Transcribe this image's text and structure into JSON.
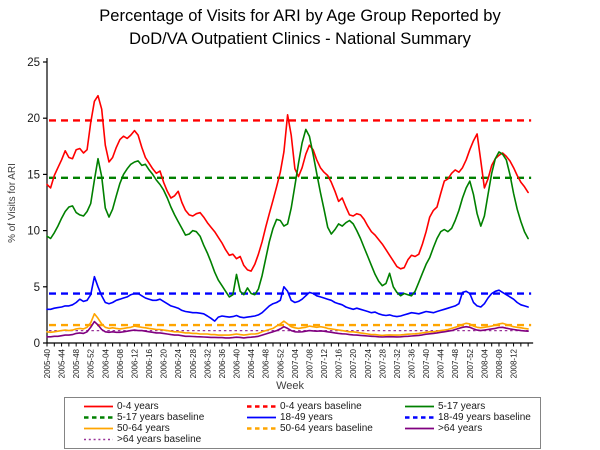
{
  "title": {
    "line1": "Percentage of Visits for ARI by Age Group Reported by",
    "line2": "DoD/VA Outpatient Clinics - National Summary"
  },
  "chart_data": {
    "type": "line",
    "title": "Percentage of Visits for ARI by Age Group Reported by DoD/VA Outpatient Clinics - National Summary",
    "xlabel": "Week",
    "ylabel": "% of Visits for ARI",
    "ylim": [
      0,
      25
    ],
    "yticks": [
      0,
      5,
      10,
      15,
      20,
      25
    ],
    "grid": false,
    "legend_position": "bottom",
    "n_points": 133,
    "weeks_per_point": 1,
    "x_tick_every_points": 4,
    "x_tick_labels": [
      "2005-40",
      "2005-44",
      "2005-48",
      "2005-52",
      "2006-04",
      "2006-08",
      "2006-12",
      "2006-16",
      "2006-20",
      "2006-24",
      "2006-28",
      "2006-32",
      "2006-36",
      "2006-40",
      "2006-44",
      "2006-48",
      "2006-52",
      "2007-04",
      "2007-08",
      "2007-12",
      "2007-16",
      "2007-20",
      "2007-24",
      "2007-28",
      "2007-32",
      "2007-36",
      "2007-40",
      "2007-44",
      "2007-48",
      "2007-52",
      "2008-04",
      "2008-08",
      "2008-12"
    ],
    "series": [
      {
        "name": "0-4 years",
        "color": "#FF0000",
        "style": "solid",
        "values": [
          14.1,
          13.8,
          14.9,
          15.6,
          16.3,
          17.1,
          16.5,
          16.4,
          17.2,
          17.3,
          16.9,
          17.2,
          19.6,
          21.5,
          22.0,
          20.8,
          17.6,
          16.1,
          16.5,
          17.4,
          18.1,
          18.4,
          18.2,
          18.5,
          18.9,
          18.5,
          17.4,
          16.5,
          16.0,
          15.5,
          15.1,
          15.3,
          14.3,
          13.5,
          12.9,
          13.1,
          13.5,
          12.5,
          11.8,
          11.4,
          11.3,
          11.5,
          11.6,
          11.2,
          10.7,
          10.3,
          9.9,
          9.4,
          8.9,
          8.3,
          7.8,
          7.9,
          7.5,
          7.7,
          6.9,
          6.5,
          6.4,
          7.0,
          7.9,
          9.0,
          10.3,
          11.5,
          12.7,
          13.9,
          15.2,
          17.0,
          20.3,
          18.5,
          15.5,
          14.8,
          15.6,
          16.8,
          17.6,
          17.2,
          16.3,
          15.6,
          15.2,
          14.9,
          14.3,
          13.5,
          12.6,
          12.9,
          12.1,
          11.4,
          11.3,
          11.5,
          11.4,
          11.0,
          10.4,
          9.9,
          9.6,
          9.2,
          8.8,
          8.3,
          7.8,
          7.3,
          6.8,
          6.6,
          6.7,
          7.4,
          7.8,
          7.7,
          7.9,
          8.8,
          9.9,
          11.2,
          11.8,
          12.1,
          13.3,
          14.4,
          14.6,
          15.1,
          15.4,
          15.2,
          15.6,
          16.3,
          17.2,
          18.0,
          18.6,
          16.2,
          13.8,
          14.6,
          15.8,
          16.4,
          16.7,
          16.9,
          16.6,
          16.2,
          15.6,
          14.9,
          14.3,
          13.9,
          13.4
        ]
      },
      {
        "name": "5-17 years",
        "color": "#008000",
        "style": "solid",
        "values": [
          9.5,
          9.3,
          9.8,
          10.4,
          11.1,
          11.7,
          12.1,
          12.2,
          11.6,
          11.4,
          11.3,
          11.7,
          12.4,
          14.5,
          16.4,
          14.8,
          12.0,
          11.2,
          11.9,
          13.1,
          14.2,
          15.0,
          15.5,
          15.9,
          16.1,
          16.2,
          15.8,
          15.9,
          15.4,
          15.0,
          14.5,
          14.1,
          13.6,
          12.9,
          12.1,
          11.4,
          10.8,
          10.2,
          9.6,
          9.7,
          10.0,
          9.9,
          9.5,
          8.7,
          8.0,
          7.2,
          6.3,
          5.6,
          5.1,
          4.6,
          4.1,
          4.3,
          6.1,
          4.6,
          4.3,
          4.9,
          4.4,
          4.3,
          4.8,
          6.0,
          7.5,
          9.0,
          10.2,
          11.0,
          10.9,
          10.4,
          10.6,
          12.0,
          14.0,
          16.0,
          17.8,
          19.0,
          18.4,
          16.8,
          15.1,
          13.4,
          11.9,
          10.3,
          9.7,
          10.1,
          10.6,
          10.4,
          10.7,
          10.9,
          10.6,
          10.0,
          9.3,
          8.5,
          7.7,
          6.9,
          6.1,
          5.5,
          5.1,
          5.3,
          6.2,
          5.0,
          4.5,
          4.2,
          4.4,
          4.3,
          4.2,
          4.6,
          5.4,
          6.2,
          7.0,
          7.6,
          8.5,
          9.3,
          9.9,
          10.1,
          9.9,
          10.2,
          10.9,
          11.8,
          12.9,
          13.8,
          14.4,
          13.2,
          11.5,
          10.4,
          11.3,
          13.2,
          15.1,
          16.4,
          17.0,
          16.8,
          16.3,
          15.0,
          13.3,
          11.9,
          10.8,
          9.9,
          9.3
        ]
      },
      {
        "name": "18-49 years",
        "color": "#0000FF",
        "style": "solid",
        "values": [
          3.0,
          3.0,
          3.1,
          3.15,
          3.2,
          3.3,
          3.3,
          3.4,
          3.6,
          3.9,
          3.7,
          3.8,
          4.3,
          5.9,
          5.0,
          4.2,
          3.6,
          3.5,
          3.6,
          3.8,
          3.9,
          4.0,
          4.1,
          4.3,
          4.4,
          4.4,
          4.2,
          4.0,
          3.9,
          3.8,
          3.8,
          3.9,
          3.7,
          3.5,
          3.3,
          3.2,
          3.1,
          2.9,
          2.8,
          2.75,
          2.7,
          2.7,
          2.65,
          2.6,
          2.4,
          2.2,
          1.95,
          2.3,
          2.4,
          2.35,
          2.3,
          2.35,
          2.45,
          2.3,
          2.25,
          2.3,
          2.35,
          2.4,
          2.5,
          2.7,
          3.0,
          3.3,
          3.5,
          3.6,
          3.8,
          5.0,
          4.6,
          3.8,
          3.6,
          3.7,
          3.9,
          4.2,
          4.5,
          4.4,
          4.2,
          4.1,
          4.0,
          3.9,
          3.8,
          3.6,
          3.5,
          3.4,
          3.2,
          3.1,
          3.0,
          3.1,
          3.0,
          2.9,
          2.8,
          2.7,
          2.75,
          2.6,
          2.5,
          2.45,
          2.5,
          2.4,
          2.35,
          2.4,
          2.5,
          2.6,
          2.7,
          2.65,
          2.6,
          2.7,
          2.8,
          2.75,
          2.7,
          2.8,
          2.9,
          3.0,
          3.1,
          3.2,
          3.3,
          3.5,
          4.5,
          4.6,
          4.4,
          3.6,
          3.3,
          3.2,
          3.5,
          4.0,
          4.4,
          4.6,
          4.7,
          4.5,
          4.3,
          4.1,
          3.9,
          3.6,
          3.4,
          3.3,
          3.2
        ]
      },
      {
        "name": "50-64 years",
        "color": "#FFA500",
        "style": "solid",
        "values": [
          1.0,
          0.95,
          1.0,
          1.05,
          1.1,
          1.15,
          1.1,
          1.15,
          1.25,
          1.3,
          1.25,
          1.4,
          1.8,
          2.6,
          2.2,
          1.7,
          1.4,
          1.3,
          1.35,
          1.3,
          1.25,
          1.3,
          1.35,
          1.4,
          1.5,
          1.45,
          1.4,
          1.35,
          1.3,
          1.25,
          1.2,
          1.2,
          1.15,
          1.1,
          1.05,
          1.0,
          1.0,
          0.95,
          0.9,
          0.9,
          0.85,
          0.85,
          0.8,
          0.8,
          0.8,
          0.75,
          0.75,
          0.7,
          0.7,
          0.7,
          0.7,
          0.75,
          0.8,
          0.75,
          0.7,
          0.75,
          0.8,
          0.8,
          0.85,
          1.0,
          1.1,
          1.2,
          1.3,
          1.5,
          1.7,
          1.95,
          1.7,
          1.45,
          1.35,
          1.3,
          1.35,
          1.4,
          1.5,
          1.45,
          1.4,
          1.45,
          1.4,
          1.3,
          1.25,
          1.2,
          1.15,
          1.1,
          1.05,
          1.0,
          1.0,
          0.95,
          0.9,
          0.85,
          0.8,
          0.75,
          0.75,
          0.7,
          0.68,
          0.7,
          0.72,
          0.7,
          0.7,
          0.72,
          0.75,
          0.78,
          0.8,
          0.82,
          0.85,
          0.9,
          0.95,
          1.0,
          1.0,
          1.05,
          1.1,
          1.15,
          1.2,
          1.3,
          1.4,
          1.5,
          1.65,
          1.75,
          1.7,
          1.5,
          1.4,
          1.35,
          1.4,
          1.45,
          1.5,
          1.6,
          1.7,
          1.75,
          1.65,
          1.55,
          1.45,
          1.4,
          1.35,
          1.3,
          1.25
        ]
      },
      {
        "name": ">64 years",
        "color": "#800080",
        "style": "solid",
        "values": [
          0.55,
          0.55,
          0.6,
          0.6,
          0.65,
          0.7,
          0.7,
          0.75,
          0.85,
          0.9,
          0.85,
          1.0,
          1.4,
          1.9,
          1.6,
          1.2,
          1.0,
          0.95,
          1.0,
          0.95,
          0.95,
          1.0,
          1.05,
          1.1,
          1.15,
          1.1,
          1.1,
          1.05,
          1.0,
          0.95,
          0.9,
          0.9,
          0.85,
          0.8,
          0.75,
          0.7,
          0.7,
          0.65,
          0.6,
          0.6,
          0.58,
          0.56,
          0.55,
          0.53,
          0.52,
          0.5,
          0.5,
          0.48,
          0.48,
          0.45,
          0.45,
          0.48,
          0.52,
          0.5,
          0.45,
          0.5,
          0.52,
          0.55,
          0.6,
          0.7,
          0.8,
          0.9,
          1.0,
          1.1,
          1.25,
          1.45,
          1.3,
          1.1,
          1.0,
          0.98,
          1.0,
          1.05,
          1.1,
          1.08,
          1.05,
          1.08,
          1.05,
          1.0,
          0.95,
          0.9,
          0.85,
          0.82,
          0.8,
          0.75,
          0.72,
          0.7,
          0.68,
          0.65,
          0.62,
          0.6,
          0.58,
          0.55,
          0.53,
          0.55,
          0.56,
          0.55,
          0.54,
          0.55,
          0.58,
          0.6,
          0.62,
          0.65,
          0.68,
          0.72,
          0.78,
          0.82,
          0.85,
          0.9,
          0.95,
          1.0,
          1.05,
          1.1,
          1.2,
          1.3,
          1.4,
          1.45,
          1.4,
          1.25,
          1.15,
          1.1,
          1.15,
          1.2,
          1.25,
          1.3,
          1.38,
          1.4,
          1.32,
          1.25,
          1.2,
          1.15,
          1.1,
          1.08,
          1.05
        ]
      }
    ],
    "baselines": [
      {
        "name": "0-4 years baseline",
        "color": "#FF0000",
        "value": 19.8,
        "dash": "dash"
      },
      {
        "name": "5-17 years baseline",
        "color": "#008000",
        "value": 14.7,
        "dash": "dash"
      },
      {
        "name": "18-49 years baseline",
        "color": "#0000FF",
        "value": 4.4,
        "dash": "dash"
      },
      {
        "name": "50-64 years baseline",
        "color": "#FFA500",
        "value": 1.6,
        "dash": "dash"
      },
      {
        "name": ">64 years baseline",
        "color": "#993399",
        "value": 1.1,
        "dash": "dot"
      }
    ],
    "legend_entries": [
      {
        "label": "0-4 years",
        "color": "#FF0000",
        "dash": "solid"
      },
      {
        "label": "0-4 years baseline",
        "color": "#FF0000",
        "dash": "dash"
      },
      {
        "label": "5-17 years",
        "color": "#008000",
        "dash": "solid"
      },
      {
        "label": "5-17 years baseline",
        "color": "#008000",
        "dash": "dash"
      },
      {
        "label": "18-49 years",
        "color": "#0000FF",
        "dash": "solid"
      },
      {
        "label": "18-49 years baseline",
        "color": "#0000FF",
        "dash": "dash"
      },
      {
        "label": "50-64 years",
        "color": "#FFA500",
        "dash": "solid"
      },
      {
        "label": "50-64 years baseline",
        "color": "#FFA500",
        "dash": "dash"
      },
      {
        "label": ">64 years",
        "color": "#800080",
        "dash": "solid"
      },
      {
        "label": ">64 years baseline",
        "color": "#993399",
        "dash": "dot"
      }
    ]
  }
}
